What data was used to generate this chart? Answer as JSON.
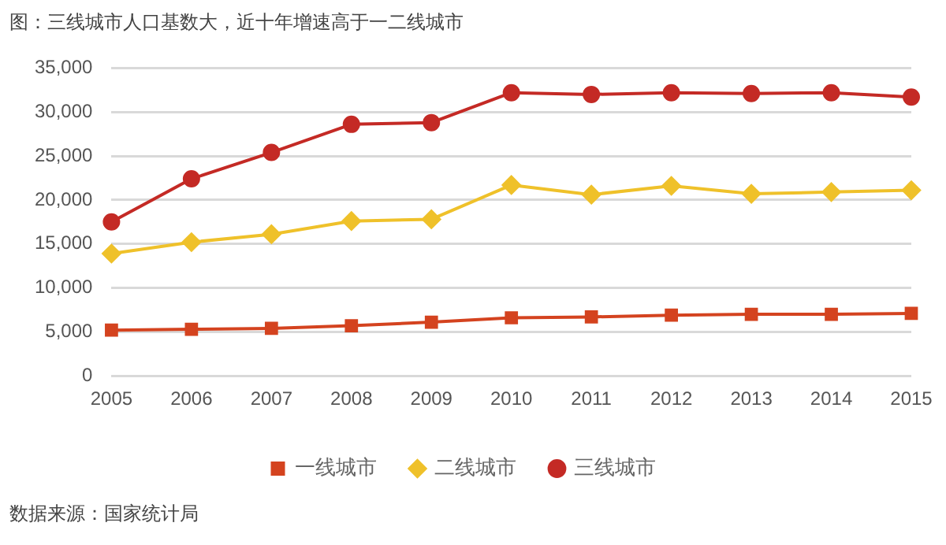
{
  "chart_data": {
    "type": "line",
    "title": "图：三线城市人口基数大，近十年增速高于一二线城市",
    "categories": [
      "2005",
      "2006",
      "2007",
      "2008",
      "2009",
      "2010",
      "2011",
      "2012",
      "2013",
      "2014",
      "2015"
    ],
    "series": [
      {
        "name": "一线城市",
        "color": "#d4431f",
        "marker": "square",
        "values": [
          5200,
          5300,
          5400,
          5700,
          6100,
          6600,
          6700,
          6900,
          7000,
          7000,
          7100
        ]
      },
      {
        "name": "二线城市",
        "color": "#efc12a",
        "marker": "diamond",
        "values": [
          13900,
          15200,
          16100,
          17600,
          17800,
          21700,
          20600,
          21600,
          20700,
          20900,
          21100
        ]
      },
      {
        "name": "三线城市",
        "color": "#c42a25",
        "marker": "circle",
        "values": [
          17500,
          22400,
          25400,
          28600,
          28800,
          32200,
          32000,
          32200,
          32100,
          32200,
          31700
        ]
      }
    ],
    "ylim": [
      0,
      35000
    ],
    "yticks": [
      0,
      {
        "value": 5000,
        "label": "5,000"
      },
      {
        "value": 10000,
        "label": "10,000"
      },
      {
        "value": 15000,
        "label": "15,000"
      },
      {
        "value": 20000,
        "label": "20,000"
      },
      {
        "value": 25000,
        "label": "25,000"
      },
      {
        "value": 30000,
        "label": "30,000"
      },
      {
        "value": 35000,
        "label": "35,000"
      }
    ],
    "grid": "y",
    "legend": "bottom",
    "annotations": [
      "数据来源：国家统计局"
    ]
  }
}
